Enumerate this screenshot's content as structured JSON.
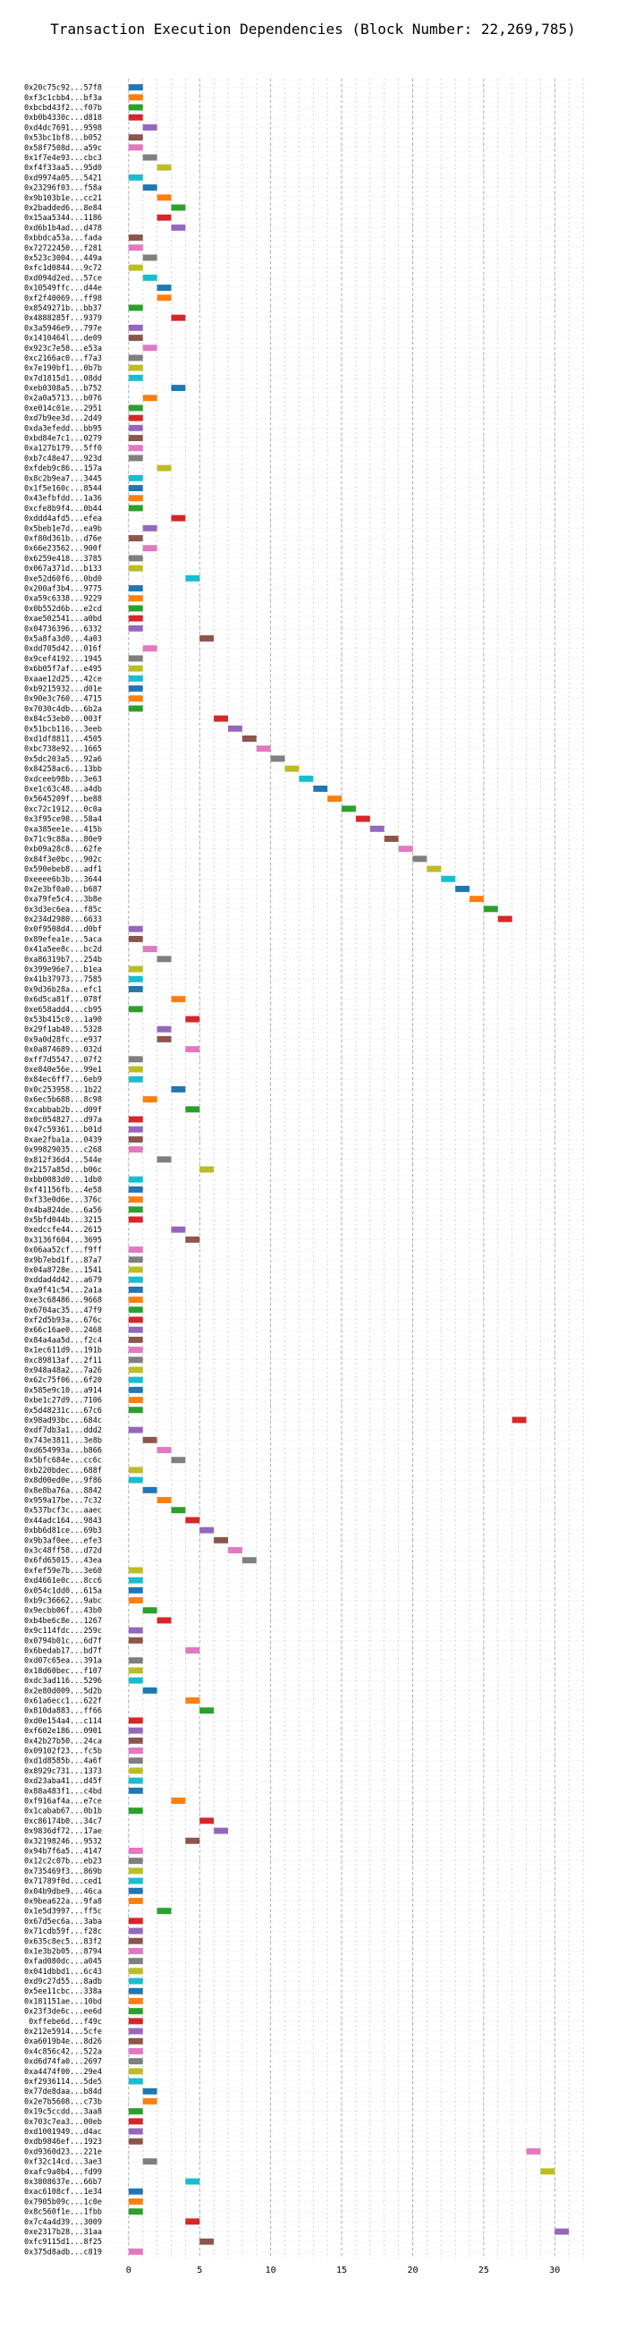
{
  "chart_data": {
    "type": "gantt",
    "title": "Transaction Execution Dependencies (Block Number: 22,269,785)",
    "xlabel": "",
    "ylabel": "",
    "xlim": [
      -1.5,
      32.5
    ],
    "xticks": [
      0,
      5,
      10,
      15,
      20,
      25,
      30
    ],
    "grid": true,
    "bar_duration": 1,
    "colors": [
      "#1f77b4",
      "#ff7f0e",
      "#2ca02c",
      "#d62728",
      "#9467bd",
      "#8c564b",
      "#e377c2",
      "#7f7f7f",
      "#bcbd22",
      "#17becf"
    ],
    "transactions": [
      {
        "hash": "0x20c75c92...57f8",
        "start": 0
      },
      {
        "hash": "0xf3c1cbb4...bf3a",
        "start": 0
      },
      {
        "hash": "0xbcbd43f2...f07b",
        "start": 0
      },
      {
        "hash": "0xb0b4330c...d818",
        "start": 0
      },
      {
        "hash": "0xd4dc7691...9598",
        "start": 1
      },
      {
        "hash": "0x53bc1bf8...b052",
        "start": 0
      },
      {
        "hash": "0x58f7508d...a59c",
        "start": 0
      },
      {
        "hash": "0x1f7e4e93...cbc3",
        "start": 1
      },
      {
        "hash": "0xf4f33aa5...95d0",
        "start": 2
      },
      {
        "hash": "0xd9974a05...5421",
        "start": 0
      },
      {
        "hash": "0x23296f03...f58a",
        "start": 1
      },
      {
        "hash": "0x9b103b1e...cc21",
        "start": 2
      },
      {
        "hash": "0x2badded6...8e84",
        "start": 3
      },
      {
        "hash": "0x15aa5344...1186",
        "start": 2
      },
      {
        "hash": "0xd6b1b4ad...d478",
        "start": 3
      },
      {
        "hash": "0xbbdca53a...fada",
        "start": 0
      },
      {
        "hash": "0x72722450...f281",
        "start": 0
      },
      {
        "hash": "0x523c3004...449a",
        "start": 1
      },
      {
        "hash": "0xfc1d0844...9c72",
        "start": 0
      },
      {
        "hash": "0xd094d2ed...57ce",
        "start": 1
      },
      {
        "hash": "0x10549ffc...d44e",
        "start": 2
      },
      {
        "hash": "0xf2f40069...ff98",
        "start": 2
      },
      {
        "hash": "0x8549271b...bb37",
        "start": 0
      },
      {
        "hash": "0x4888285f...9379",
        "start": 3
      },
      {
        "hash": "0x3a5946e9...797e",
        "start": 0
      },
      {
        "hash": "0x1410464l...de09",
        "start": 0
      },
      {
        "hash": "0x923c7e58...e53a",
        "start": 1
      },
      {
        "hash": "0xc2166ac0...f7a3",
        "start": 0
      },
      {
        "hash": "0x7e190bf1...0b7b",
        "start": 0
      },
      {
        "hash": "0x7d1815d1...08dd",
        "start": 0
      },
      {
        "hash": "0xeb0308a5...b752",
        "start": 3
      },
      {
        "hash": "0x2a0a5713...b076",
        "start": 1
      },
      {
        "hash": "0xe014c01e...2951",
        "start": 0
      },
      {
        "hash": "0xd7b9ee3d...2d49",
        "start": 0
      },
      {
        "hash": "0xda3efedd...bb95",
        "start": 0
      },
      {
        "hash": "0xbd84e7c1...0279",
        "start": 0
      },
      {
        "hash": "0xa127b179...5ff0",
        "start": 0
      },
      {
        "hash": "0xb7c48e47...923d",
        "start": 0
      },
      {
        "hash": "0xfdeb9c86...157a",
        "start": 2
      },
      {
        "hash": "0x8c2b9ea7...3445",
        "start": 0
      },
      {
        "hash": "0x1f5e160c...8544",
        "start": 0
      },
      {
        "hash": "0x43efbfdd...1a36",
        "start": 0
      },
      {
        "hash": "0xcfe8b9f4...0b44",
        "start": 0
      },
      {
        "hash": "0xddd4afd5...efea",
        "start": 3
      },
      {
        "hash": "0x5beb1e7d...ea9b",
        "start": 1
      },
      {
        "hash": "0xf80d361b...d76e",
        "start": 0
      },
      {
        "hash": "0x66e23562...900f",
        "start": 1
      },
      {
        "hash": "0x6259e418...3785",
        "start": 0
      },
      {
        "hash": "0x067a371d...b133",
        "start": 0
      },
      {
        "hash": "0xe52d60f6...0bd0",
        "start": 4
      },
      {
        "hash": "0x200af3b4...9775",
        "start": 0
      },
      {
        "hash": "0xa59c6338...9229",
        "start": 0
      },
      {
        "hash": "0x0b552d6b...e2cd",
        "start": 0
      },
      {
        "hash": "0xae502541...a0bd",
        "start": 0
      },
      {
        "hash": "0x04736396...6332",
        "start": 0
      },
      {
        "hash": "0x5a8fa3d0...4a03",
        "start": 5
      },
      {
        "hash": "0xdd705d42...016f",
        "start": 1
      },
      {
        "hash": "0x9cef4192...1945",
        "start": 0
      },
      {
        "hash": "0x6b05f7af...e495",
        "start": 0
      },
      {
        "hash": "0xaae12d25...42ce",
        "start": 0
      },
      {
        "hash": "0xb9215932...d01e",
        "start": 0
      },
      {
        "hash": "0x90e3c760...4715",
        "start": 0
      },
      {
        "hash": "0x7030c4db...6b2a",
        "start": 0
      },
      {
        "hash": "0x84c53eb0...003f",
        "start": 6
      },
      {
        "hash": "0x51bcb116...3eeb",
        "start": 7
      },
      {
        "hash": "0xd1df8811...4505",
        "start": 8
      },
      {
        "hash": "0xbc738e92...1665",
        "start": 9
      },
      {
        "hash": "0x5dc203a5...92a6",
        "start": 10
      },
      {
        "hash": "0x84258ac6...13bb",
        "start": 11
      },
      {
        "hash": "0xdceeb98b...3e63",
        "start": 12
      },
      {
        "hash": "0xe1c63c48...a4db",
        "start": 13
      },
      {
        "hash": "0x5645209f...be88",
        "start": 14
      },
      {
        "hash": "0xc72c1912...0c0a",
        "start": 15
      },
      {
        "hash": "0x3f95ce98...58a4",
        "start": 16
      },
      {
        "hash": "0xa385ee1e...415b",
        "start": 17
      },
      {
        "hash": "0x71c9c88a...80e9",
        "start": 18
      },
      {
        "hash": "0xb09a28c8...62fe",
        "start": 19
      },
      {
        "hash": "0x84f3e0bc...902c",
        "start": 20
      },
      {
        "hash": "0x590ebeb8...adf1",
        "start": 21
      },
      {
        "hash": "0xeeee6b3b...3644",
        "start": 22
      },
      {
        "hash": "0x2e3bf0a0...b687",
        "start": 23
      },
      {
        "hash": "0xa79fe5c4...3b8e",
        "start": 24
      },
      {
        "hash": "0x3d3ec6ea...f85c",
        "start": 25
      },
      {
        "hash": "0x234d2980...6633",
        "start": 26
      },
      {
        "hash": "0x0f9508d4...d0bf",
        "start": 0
      },
      {
        "hash": "0x89efea1e...5aca",
        "start": 0
      },
      {
        "hash": "0x41a5ee8c...bc2d",
        "start": 1
      },
      {
        "hash": "0xa86319b7...254b",
        "start": 2
      },
      {
        "hash": "0x399e96e7...b1ea",
        "start": 0
      },
      {
        "hash": "0x41b37973...7585",
        "start": 0
      },
      {
        "hash": "0x9d36b28a...efc1",
        "start": 0
      },
      {
        "hash": "0x6d5ca81f...078f",
        "start": 3
      },
      {
        "hash": "0xe658add4...cb95",
        "start": 0
      },
      {
        "hash": "0x53b415c0...1a90",
        "start": 4
      },
      {
        "hash": "0x29f1ab40...5328",
        "start": 2
      },
      {
        "hash": "0x9a0d28fc...e937",
        "start": 2
      },
      {
        "hash": "0x0a874689...032d",
        "start": 4
      },
      {
        "hash": "0xff7d5547...07f2",
        "start": 0
      },
      {
        "hash": "0xe840e56e...99e1",
        "start": 0
      },
      {
        "hash": "0x84ec6ff7...6eb9",
        "start": 0
      },
      {
        "hash": "0x0c253958...1b22",
        "start": 3
      },
      {
        "hash": "0x6ec5b688...8c98",
        "start": 1
      },
      {
        "hash": "0xcabbab2b...d09f",
        "start": 4
      },
      {
        "hash": "0x0c054827...d97a",
        "start": 0
      },
      {
        "hash": "0x47c59361...b01d",
        "start": 0
      },
      {
        "hash": "0xae2fba1a...0439",
        "start": 0
      },
      {
        "hash": "0x99829035...c268",
        "start": 0
      },
      {
        "hash": "0x812f36d4...544e",
        "start": 2
      },
      {
        "hash": "0x2157a85d...b06c",
        "start": 5
      },
      {
        "hash": "0xbb0083d0...1db0",
        "start": 0
      },
      {
        "hash": "0xf41156fb...4e58",
        "start": 0
      },
      {
        "hash": "0xf33e0d6e...376c",
        "start": 0
      },
      {
        "hash": "0x4ba824de...6a56",
        "start": 0
      },
      {
        "hash": "0x5bfd044b...3215",
        "start": 0
      },
      {
        "hash": "0xedccfe44...2615",
        "start": 3
      },
      {
        "hash": "0x3136f604...3695",
        "start": 4
      },
      {
        "hash": "0x06aa52cf...f9ff",
        "start": 0
      },
      {
        "hash": "0x9b7ebd1f...87a7",
        "start": 0
      },
      {
        "hash": "0x04a8728e...1541",
        "start": 0
      },
      {
        "hash": "0xddad4d42...a679",
        "start": 0
      },
      {
        "hash": "0xa9f41c54...2a1a",
        "start": 0
      },
      {
        "hash": "0xe3c68486...9668",
        "start": 0
      },
      {
        "hash": "0x6704ac35...47f9",
        "start": 0
      },
      {
        "hash": "0xf2d5b93a...676c",
        "start": 0
      },
      {
        "hash": "0x66c16ae0...2468",
        "start": 0
      },
      {
        "hash": "0x84a4aa5d...f2c4",
        "start": 0
      },
      {
        "hash": "0x1ec611d9...191b",
        "start": 0
      },
      {
        "hash": "0xc89813af...2f11",
        "start": 0
      },
      {
        "hash": "0x948a48a2...7a26",
        "start": 0
      },
      {
        "hash": "0x62c75f06...6f20",
        "start": 0
      },
      {
        "hash": "0x585e9c10...a914",
        "start": 0
      },
      {
        "hash": "0xbe1c27d9...7106",
        "start": 0
      },
      {
        "hash": "0x5d48231c...67c6",
        "start": 0
      },
      {
        "hash": "0x98ad93bc...684c",
        "start": 27
      },
      {
        "hash": "0xdf7db3a1...ddd2",
        "start": 0
      },
      {
        "hash": "0x743e3811...3e8b",
        "start": 1
      },
      {
        "hash": "0xd654993a...b866",
        "start": 2
      },
      {
        "hash": "0x5bfc684e...cc6c",
        "start": 3
      },
      {
        "hash": "0xb220bdec...688f",
        "start": 0
      },
      {
        "hash": "0x8d00ed0e...9f86",
        "start": 0
      },
      {
        "hash": "0x8e8ba76a...8842",
        "start": 1
      },
      {
        "hash": "0x959a17be...7c32",
        "start": 2
      },
      {
        "hash": "0x537bcf3c...aaec",
        "start": 3
      },
      {
        "hash": "0x44adc164...9843",
        "start": 4
      },
      {
        "hash": "0xbb6d81ce...69b3",
        "start": 5
      },
      {
        "hash": "0x9b3af0ee...efe3",
        "start": 6
      },
      {
        "hash": "0x3c48ff58...d72d",
        "start": 7
      },
      {
        "hash": "0x6fd65015...43ea",
        "start": 8
      },
      {
        "hash": "0xfef59e7b...3e60",
        "start": 0
      },
      {
        "hash": "0xd4661e0c...8cc6",
        "start": 0
      },
      {
        "hash": "0x054c1dd0...615a",
        "start": 0
      },
      {
        "hash": "0xb9c36662...9abc",
        "start": 0
      },
      {
        "hash": "0x9ecbb06f...43b0",
        "start": 1
      },
      {
        "hash": "0xb4be6c8e...1267",
        "start": 2
      },
      {
        "hash": "0x9c114fdc...259c",
        "start": 0
      },
      {
        "hash": "0x0794b01c...6d7f",
        "start": 0
      },
      {
        "hash": "0x6bedab17...bd7f",
        "start": 4
      },
      {
        "hash": "0xd07c65ea...391a",
        "start": 0
      },
      {
        "hash": "0x18d60bec...f107",
        "start": 0
      },
      {
        "hash": "0xdc3ad116...5296",
        "start": 0
      },
      {
        "hash": "0x2e80d009...5d2b",
        "start": 1
      },
      {
        "hash": "0x61a6ecc1...622f",
        "start": 4
      },
      {
        "hash": "0x810da883...ff66",
        "start": 5
      },
      {
        "hash": "0xd0e154a4...c114",
        "start": 0
      },
      {
        "hash": "0xf602e186...0901",
        "start": 0
      },
      {
        "hash": "0x42b27b50...24ca",
        "start": 0
      },
      {
        "hash": "0x09102f23...fc5b",
        "start": 0
      },
      {
        "hash": "0xd1d8585b...4a6f",
        "start": 0
      },
      {
        "hash": "0x8929c731...1373",
        "start": 0
      },
      {
        "hash": "0xd23aba41...d45f",
        "start": 0
      },
      {
        "hash": "0x88a483f1...c4bd",
        "start": 0
      },
      {
        "hash": "0xf916af4a...e7ce",
        "start": 3
      },
      {
        "hash": "0x1cabab67...0b1b",
        "start": 0
      },
      {
        "hash": "0xc86174b0...34c7",
        "start": 5
      },
      {
        "hash": "0x9836df72...17ae",
        "start": 6
      },
      {
        "hash": "0x32198246...9532",
        "start": 4
      },
      {
        "hash": "0x94b7f6a5...4147",
        "start": 0
      },
      {
        "hash": "0x12c2c07b...eb23",
        "start": 0
      },
      {
        "hash": "0x735469f3...869b",
        "start": 0
      },
      {
        "hash": "0x71789f0d...ced1",
        "start": 0
      },
      {
        "hash": "0x04b9dbe9...46ca",
        "start": 0
      },
      {
        "hash": "0x9bea622a...9fa8",
        "start": 0
      },
      {
        "hash": "0x1e5d3997...ff5c",
        "start": 2
      },
      {
        "hash": "0x67d5ec6a...3aba",
        "start": 0
      },
      {
        "hash": "0x71cdb59f...f28c",
        "start": 0
      },
      {
        "hash": "0x635c8ec5...83f2",
        "start": 0
      },
      {
        "hash": "0x1e3b2b05...8794",
        "start": 0
      },
      {
        "hash": "0xfad080dc...a045",
        "start": 0
      },
      {
        "hash": "0x041dbbd1...6c43",
        "start": 0
      },
      {
        "hash": "0xd9c27d55...8adb",
        "start": 0
      },
      {
        "hash": "0x5ee11cbc...338a",
        "start": 0
      },
      {
        "hash": "0x181151ae...10bd",
        "start": 0
      },
      {
        "hash": "0x23f3de6c...ee6d",
        "start": 0
      },
      {
        "hash": "0xffebe6d...f49c",
        "start": 0
      },
      {
        "hash": "0x212e5914...5cfe",
        "start": 0
      },
      {
        "hash": "0xa6019b4e...8d26",
        "start": 0
      },
      {
        "hash": "0x4c856c42...522a",
        "start": 0
      },
      {
        "hash": "0xd6d74fa0...2697",
        "start": 0
      },
      {
        "hash": "0xa4474f00...29e4",
        "start": 0
      },
      {
        "hash": "0xf2936114...5de5",
        "start": 0
      },
      {
        "hash": "0x77de8daa...b84d",
        "start": 1
      },
      {
        "hash": "0x2e7b5608...c73b",
        "start": 1
      },
      {
        "hash": "0x19c5ccdd...3aa8",
        "start": 0
      },
      {
        "hash": "0x703c7ea3...00eb",
        "start": 0
      },
      {
        "hash": "0xd1001949...d4ac",
        "start": 0
      },
      {
        "hash": "0xdb9846ef...1923",
        "start": 0
      },
      {
        "hash": "0xd9360d23...221e",
        "start": 28
      },
      {
        "hash": "0xf32c14cd...3ae3",
        "start": 1
      },
      {
        "hash": "0xafc9a0b4...fd99",
        "start": 29
      },
      {
        "hash": "0x3808637e...66b7",
        "start": 4
      },
      {
        "hash": "0xac6108cf...1e34",
        "start": 0
      },
      {
        "hash": "0x7905b09c...1c0e",
        "start": 0
      },
      {
        "hash": "0x8c560f1e...1fbb",
        "start": 0
      },
      {
        "hash": "0x7c4a4d39...3009",
        "start": 4
      },
      {
        "hash": "0xe2317b28...31aa",
        "start": 30
      },
      {
        "hash": "0xfc9115d1...8f25",
        "start": 5
      },
      {
        "hash": "0x375d8adb...c819",
        "start": 0
      }
    ]
  }
}
